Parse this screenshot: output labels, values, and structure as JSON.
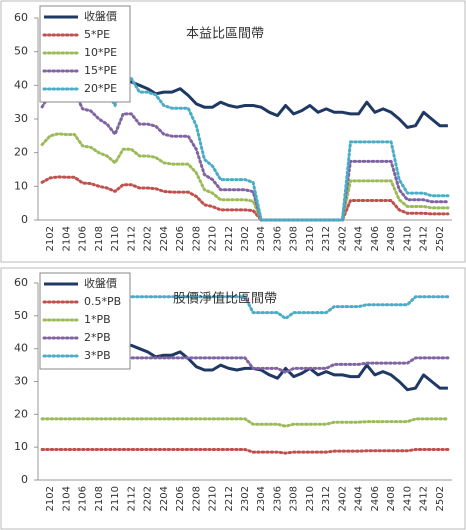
{
  "chart_data": [
    {
      "type": "line",
      "title": "本益比區間帶",
      "categories": [
        null,
        "2102",
        null,
        "2104",
        null,
        "2106",
        null,
        "2108",
        null,
        "2110",
        null,
        "2112",
        null,
        "2202",
        null,
        "2204",
        null,
        "2206",
        null,
        "2208",
        null,
        "2210",
        null,
        "2212",
        null,
        "2302",
        null,
        "2304",
        null,
        "2306",
        null,
        "2308",
        null,
        "2310",
        null,
        "2312",
        null,
        "2402",
        null,
        "2404",
        null,
        "2406",
        null,
        "2408",
        null,
        "2410",
        null,
        "2412",
        null,
        "2502",
        null
      ],
      "series": [
        {
          "name": "收盤價",
          "color": "#1f3864",
          "line_style": "solid",
          "values": [
            36,
            37,
            38,
            38,
            39,
            38,
            37,
            38,
            39,
            40,
            41,
            41,
            40,
            39,
            37.5,
            38,
            38,
            39,
            37,
            34.5,
            33.5,
            33.5,
            35,
            34,
            33.5,
            34,
            34,
            33.5,
            32,
            31,
            34,
            31.5,
            32.5,
            34,
            32,
            33,
            32,
            32,
            31.5,
            31.5,
            35,
            32,
            33,
            32,
            30,
            27.5,
            28,
            32,
            30,
            28,
            28
          ]
        },
        {
          "name": "5*PE",
          "color": "#c0504d",
          "line_style": "dotted",
          "values": [
            11.2,
            12.5,
            12.8,
            12.7,
            12.7,
            11,
            10.8,
            10,
            9.5,
            8.5,
            10.5,
            10.5,
            9.5,
            9.5,
            9.3,
            8.5,
            8.3,
            8.3,
            8.3,
            7,
            4.5,
            4,
            3,
            3,
            3,
            3,
            2.8,
            0,
            0,
            0,
            0,
            0,
            0,
            0,
            0,
            0,
            0,
            0,
            5.8,
            5.8,
            5.8,
            5.8,
            5.8,
            5.8,
            3,
            2,
            2,
            2,
            1.8,
            1.8,
            1.8
          ]
        },
        {
          "name": "10*PE",
          "color": "#9bbb59",
          "line_style": "dotted",
          "values": [
            22.4,
            25,
            25.6,
            25.4,
            25.4,
            22,
            21.6,
            20,
            19,
            17,
            21,
            21,
            19,
            19,
            18.6,
            17,
            16.6,
            16.6,
            16.6,
            14,
            9,
            8,
            6,
            6,
            6,
            6,
            5.6,
            0,
            0,
            0,
            0,
            0,
            0,
            0,
            0,
            0,
            0,
            0,
            11.6,
            11.6,
            11.6,
            11.6,
            11.6,
            11.6,
            6,
            4,
            4,
            4,
            3.6,
            3.6,
            3.6
          ]
        },
        {
          "name": "15*PE",
          "color": "#8064a2",
          "line_style": "dotted",
          "values": [
            33.6,
            37.5,
            38.4,
            38.1,
            38.1,
            33,
            32.4,
            30,
            28.5,
            25.5,
            31.5,
            31.5,
            28.5,
            28.5,
            27.9,
            25.5,
            24.9,
            24.9,
            24.9,
            21,
            13.5,
            12,
            9,
            9,
            9,
            9,
            8.4,
            0,
            0,
            0,
            0,
            0,
            0,
            0,
            0,
            0,
            0,
            0,
            17.4,
            17.4,
            17.4,
            17.4,
            17.4,
            17.4,
            9,
            6,
            6,
            6,
            5.4,
            5.4,
            5.4
          ]
        },
        {
          "name": "20*PE",
          "color": "#4bacc6",
          "line_style": "dotted",
          "values": [
            44.8,
            50,
            51.2,
            50.8,
            50.8,
            44,
            43.2,
            40,
            38,
            34,
            42,
            42,
            38,
            38,
            37.2,
            34,
            33.2,
            33.2,
            33.2,
            28,
            18,
            16,
            12,
            12,
            12,
            12,
            11.2,
            0,
            0,
            0,
            0,
            0,
            0,
            0,
            0,
            0,
            0,
            0,
            23.2,
            23.2,
            23.2,
            23.2,
            23.2,
            23.2,
            12,
            8,
            8,
            8,
            7.2,
            7.2,
            7.2
          ]
        }
      ],
      "ylim": [
        0,
        60
      ],
      "yticks": [
        0,
        10,
        20,
        30,
        40,
        50,
        60
      ],
      "legend": "top-left"
    },
    {
      "type": "line",
      "title": "股價淨值比區間帶",
      "categories": [
        null,
        "2102",
        null,
        "2104",
        null,
        "2106",
        null,
        "2108",
        null,
        "2110",
        null,
        "2112",
        null,
        "2202",
        null,
        "2204",
        null,
        "2206",
        null,
        "2208",
        null,
        "2210",
        null,
        "2212",
        null,
        "2302",
        null,
        "2304",
        null,
        "2306",
        null,
        "2308",
        null,
        "2310",
        null,
        "2312",
        null,
        "2402",
        null,
        "2404",
        null,
        "2406",
        null,
        "2408",
        null,
        "2410",
        null,
        "2412",
        null,
        "2502",
        null
      ],
      "series": [
        {
          "name": "收盤價",
          "color": "#1f3864",
          "line_style": "solid",
          "values": [
            36,
            37,
            38,
            38,
            39,
            38,
            37,
            38,
            39,
            40,
            41,
            41,
            40,
            39,
            37.5,
            38,
            38,
            39,
            37,
            34.5,
            33.5,
            33.5,
            35,
            34,
            33.5,
            34,
            34,
            33.5,
            32,
            31,
            34,
            31.5,
            32.5,
            34,
            32,
            33,
            32,
            32,
            31.5,
            31.5,
            35,
            32,
            33,
            32,
            30,
            27.5,
            28,
            32,
            30,
            28,
            28
          ]
        },
        {
          "name": "0.5*PB",
          "color": "#c0504d",
          "line_style": "dotted",
          "values": [
            9.3,
            9.3,
            9.3,
            9.3,
            9.3,
            9.3,
            9.3,
            9.3,
            9.3,
            9.3,
            9.3,
            9.3,
            9.3,
            9.3,
            9.3,
            9.3,
            9.3,
            9.3,
            9.3,
            9.3,
            9.3,
            9.3,
            9.3,
            9.3,
            9.3,
            9.3,
            8.5,
            8.5,
            8.5,
            8.5,
            8.2,
            8.5,
            8.5,
            8.5,
            8.5,
            8.5,
            8.8,
            8.8,
            8.8,
            8.8,
            8.9,
            8.9,
            8.9,
            8.9,
            8.9,
            8.9,
            9.3,
            9.3,
            9.3,
            9.3,
            9.3
          ]
        },
        {
          "name": "1*PB",
          "color": "#9bbb59",
          "line_style": "dotted",
          "values": [
            18.6,
            18.6,
            18.6,
            18.6,
            18.6,
            18.6,
            18.6,
            18.6,
            18.6,
            18.6,
            18.6,
            18.6,
            18.6,
            18.6,
            18.6,
            18.6,
            18.6,
            18.6,
            18.6,
            18.6,
            18.6,
            18.6,
            18.6,
            18.6,
            18.6,
            18.6,
            17,
            17,
            17,
            17,
            16.4,
            17,
            17,
            17,
            17,
            17,
            17.6,
            17.6,
            17.6,
            17.6,
            17.8,
            17.8,
            17.8,
            17.8,
            17.8,
            17.8,
            18.6,
            18.6,
            18.6,
            18.6,
            18.6
          ]
        },
        {
          "name": "2*PB",
          "color": "#8064a2",
          "line_style": "dotted",
          "values": [
            37.2,
            37.2,
            37.2,
            37.2,
            37.2,
            37.2,
            37.2,
            37.2,
            37.2,
            37.2,
            37.2,
            37.2,
            37.2,
            37.2,
            37.2,
            37.2,
            37.2,
            37.2,
            37.2,
            37.2,
            37.2,
            37.2,
            37.2,
            37.2,
            37.2,
            37.2,
            34,
            34,
            34,
            34,
            32.8,
            34,
            34,
            34,
            34,
            34,
            35.2,
            35.2,
            35.2,
            35.2,
            35.6,
            35.6,
            35.6,
            35.6,
            35.6,
            35.6,
            37.2,
            37.2,
            37.2,
            37.2,
            37.2
          ]
        },
        {
          "name": "3*PB",
          "color": "#4bacc6",
          "line_style": "dotted",
          "values": [
            55.8,
            55.8,
            55.8,
            55.8,
            55.8,
            55.8,
            55.8,
            55.8,
            55.8,
            55.8,
            55.8,
            55.8,
            55.8,
            55.8,
            55.8,
            55.8,
            55.8,
            55.8,
            55.8,
            55.8,
            55.8,
            55.8,
            55.8,
            55.8,
            55.8,
            55.8,
            51,
            51,
            51,
            51,
            49.2,
            51,
            51,
            51,
            51,
            51,
            52.8,
            52.8,
            52.8,
            52.8,
            53.4,
            53.4,
            53.4,
            53.4,
            53.4,
            53.4,
            55.8,
            55.8,
            55.8,
            55.8,
            55.8
          ]
        }
      ],
      "ylim": [
        0,
        60
      ],
      "yticks": [
        0,
        10,
        20,
        30,
        40,
        50,
        60
      ],
      "legend": "top-left"
    }
  ]
}
